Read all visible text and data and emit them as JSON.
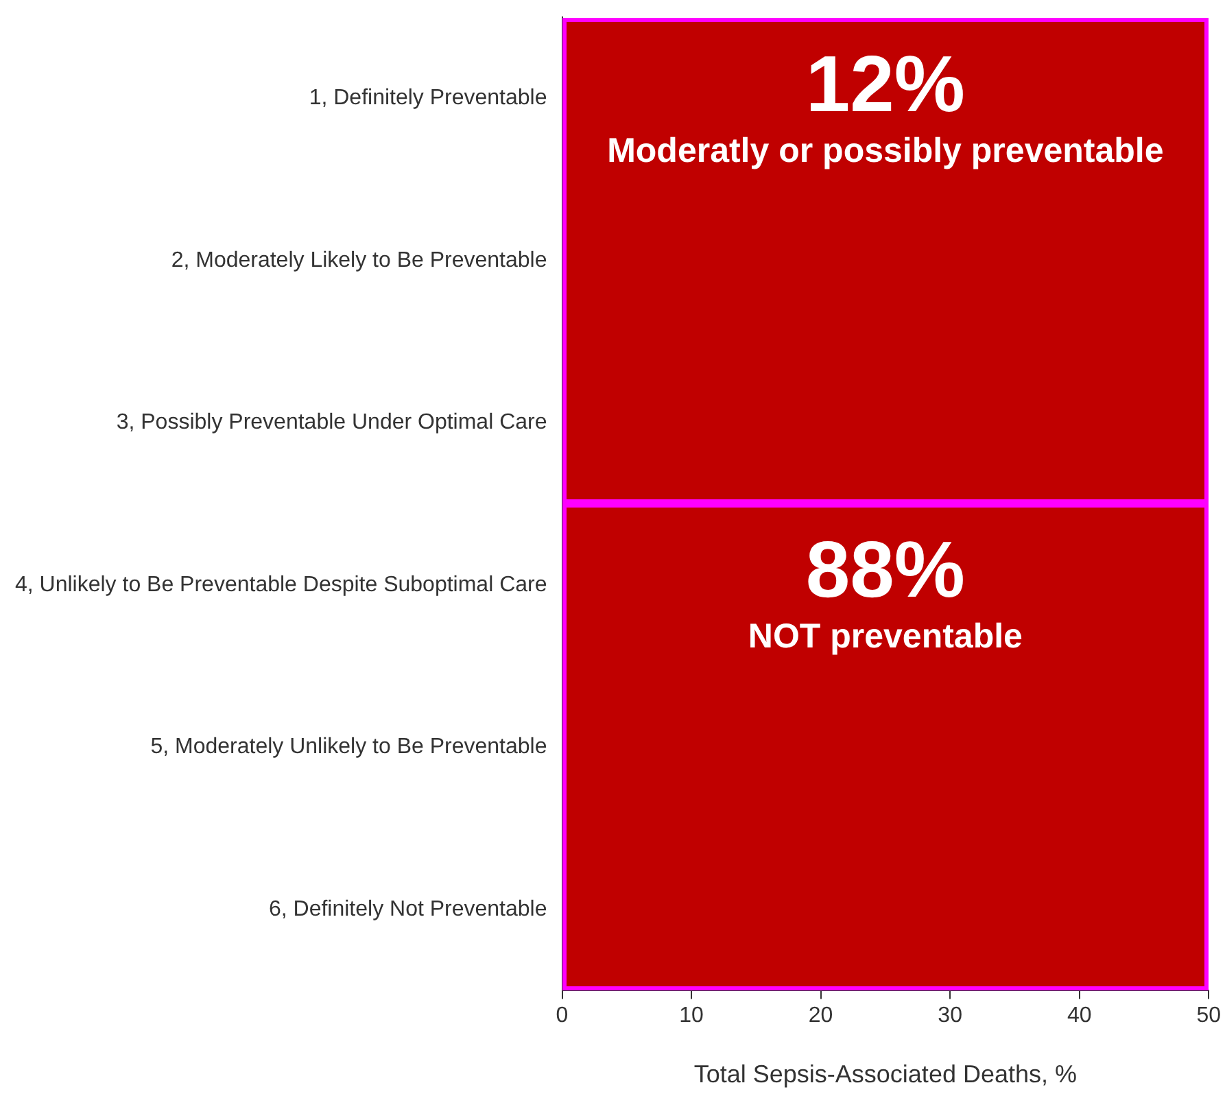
{
  "chart_data": {
    "type": "bar",
    "orientation": "horizontal",
    "xlabel": "Total Sepsis-Associated Deaths, %",
    "categories": [
      "1, Definitely Preventable",
      "2, Moderately Likely to Be Preventable",
      "3, Possibly Preventable Under Optimal Care",
      "4, Unlikely to Be Preventable Despite Suboptimal Care",
      "5, Moderately Unlikely to Be Preventable",
      "6, Definitely Not Preventable"
    ],
    "series": [
      {
        "values": [
          null,
          null,
          null,
          null,
          null,
          null
        ]
      }
    ],
    "xlim": [
      0,
      50
    ],
    "xticks": [
      0,
      10,
      20,
      30,
      40,
      50
    ],
    "annotations": [
      "12%",
      "Moderatly or possibly preventable",
      "88%",
      "NOT preventable"
    ]
  }
}
